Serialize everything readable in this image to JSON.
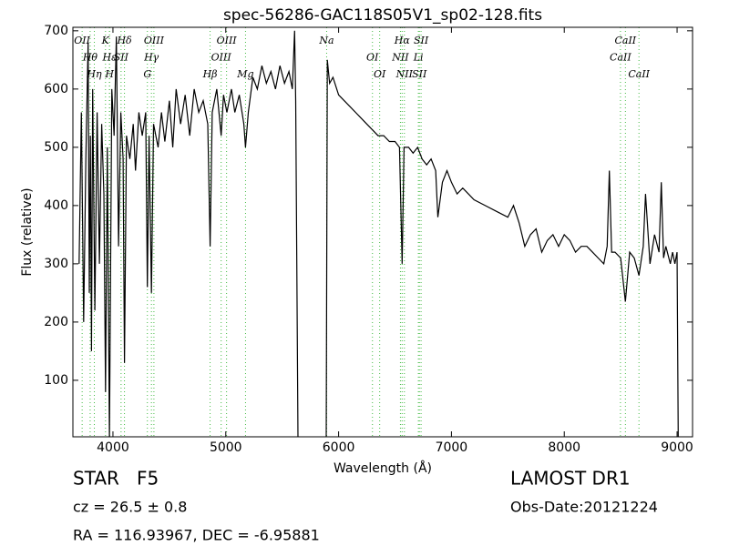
{
  "chart_data": {
    "type": "line",
    "title": "spec-56286-GAC118S05V1_sp02-128.fits",
    "x_label": "Wavelength (Å)",
    "y_label": "Flux (relative)",
    "xlim": [
      3645,
      9137
    ],
    "ylim": [
      3,
      706
    ],
    "xticks": [
      4000,
      5000,
      6000,
      7000,
      8000,
      9000
    ],
    "yticks": [
      100,
      200,
      300,
      400,
      500,
      600,
      700
    ],
    "color": "#000000",
    "line_color": "#44bb44",
    "x": [
      3700,
      3720,
      3740,
      3760,
      3780,
      3790,
      3800,
      3810,
      3820,
      3840,
      3860,
      3880,
      3900,
      3920,
      3934,
      3950,
      3969,
      3990,
      4010,
      4030,
      4050,
      4070,
      4090,
      4102,
      4120,
      4150,
      4180,
      4200,
      4230,
      4260,
      4290,
      4305,
      4320,
      4341,
      4360,
      4400,
      4430,
      4460,
      4500,
      4530,
      4560,
      4600,
      4640,
      4680,
      4720,
      4760,
      4800,
      4840,
      4861,
      4880,
      4920,
      4959,
      4980,
      5010,
      5050,
      5080,
      5120,
      5160,
      5175,
      5200,
      5240,
      5280,
      5320,
      5360,
      5400,
      5440,
      5480,
      5520,
      5560,
      5590,
      5610,
      5620,
      5640,
      5700,
      5800,
      5890,
      5900,
      5920,
      5950,
      6000,
      6050,
      6100,
      6150,
      6200,
      6250,
      6300,
      6350,
      6400,
      6450,
      6500,
      6540,
      6563,
      6580,
      6620,
      6660,
      6700,
      6740,
      6780,
      6820,
      6860,
      6880,
      6920,
      6960,
      7000,
      7050,
      7100,
      7150,
      7200,
      7300,
      7400,
      7500,
      7550,
      7600,
      7650,
      7700,
      7750,
      7800,
      7850,
      7900,
      7950,
      8000,
      8050,
      8100,
      8150,
      8200,
      8250,
      8300,
      8350,
      8380,
      8400,
      8420,
      8450,
      8500,
      8542,
      8580,
      8620,
      8662,
      8700,
      8720,
      8760,
      8800,
      8840,
      8860,
      8880,
      8900,
      8940,
      8960,
      8980,
      9000,
      9010
    ],
    "values": [
      300,
      560,
      200,
      480,
      680,
      250,
      520,
      150,
      600,
      220,
      560,
      300,
      540,
      420,
      80,
      500,
      0,
      600,
      520,
      690,
      330,
      560,
      480,
      130,
      520,
      480,
      540,
      460,
      560,
      520,
      560,
      260,
      520,
      250,
      540,
      500,
      560,
      510,
      580,
      500,
      600,
      540,
      590,
      520,
      600,
      560,
      580,
      540,
      330,
      560,
      600,
      520,
      590,
      560,
      600,
      560,
      590,
      540,
      500,
      560,
      620,
      600,
      640,
      610,
      630,
      600,
      640,
      610,
      630,
      600,
      700,
      580,
      0,
      0,
      0,
      0,
      650,
      610,
      620,
      590,
      580,
      570,
      560,
      550,
      540,
      530,
      520,
      520,
      510,
      510,
      500,
      300,
      500,
      500,
      490,
      500,
      480,
      470,
      480,
      460,
      380,
      440,
      460,
      440,
      420,
      430,
      420,
      410,
      400,
      390,
      380,
      400,
      370,
      330,
      350,
      360,
      320,
      340,
      350,
      330,
      350,
      340,
      320,
      330,
      330,
      320,
      310,
      300,
      330,
      460,
      320,
      320,
      310,
      235,
      320,
      310,
      280,
      330,
      420,
      300,
      350,
      320,
      440,
      310,
      330,
      300,
      320,
      300,
      320,
      0
    ],
    "lines": [
      {
        "label": "OII",
        "wavelength": 3727
      },
      {
        "label": "Hθ",
        "wavelength": 3798
      },
      {
        "label": "Hη",
        "wavelength": 3835
      },
      {
        "label": "K",
        "wavelength": 3934
      },
      {
        "label": "Hε",
        "wavelength": 3970
      },
      {
        "label": "H",
        "wavelength": 3969
      },
      {
        "label": "Hδ",
        "wavelength": 4102
      },
      {
        "label": "SII",
        "wavelength": 4072
      },
      {
        "label": "G",
        "wavelength": 4305
      },
      {
        "label": "OIII",
        "wavelength": 4363
      },
      {
        "label": "Hγ",
        "wavelength": 4341
      },
      {
        "label": "Hβ",
        "wavelength": 4861
      },
      {
        "label": "OIII",
        "wavelength": 5007
      },
      {
        "label": "OIII",
        "wavelength": 4959
      },
      {
        "label": "Mg",
        "wavelength": 5175
      },
      {
        "label": "Na",
        "wavelength": 5894
      },
      {
        "label": "OI",
        "wavelength": 6300
      },
      {
        "label": "OI",
        "wavelength": 6364
      },
      {
        "label": "Hα",
        "wavelength": 6563
      },
      {
        "label": "NII",
        "wavelength": 6548
      },
      {
        "label": "NII",
        "wavelength": 6583
      },
      {
        "label": "SII",
        "wavelength": 6731
      },
      {
        "label": "Li",
        "wavelength": 6707
      },
      {
        "label": "SII",
        "wavelength": 6716
      },
      {
        "label": "CaII",
        "wavelength": 8542
      },
      {
        "label": "CaII",
        "wavelength": 8498
      },
      {
        "label": "CaII",
        "wavelength": 8662
      }
    ]
  },
  "info": {
    "class": "STAR",
    "subclass": "F5",
    "cz": "cz = 26.5 ± 0.8",
    "coords": "RA = 116.93967, DEC = -6.95881",
    "survey": "LAMOST DR1",
    "obs_date": "Obs-Date:20121224"
  }
}
